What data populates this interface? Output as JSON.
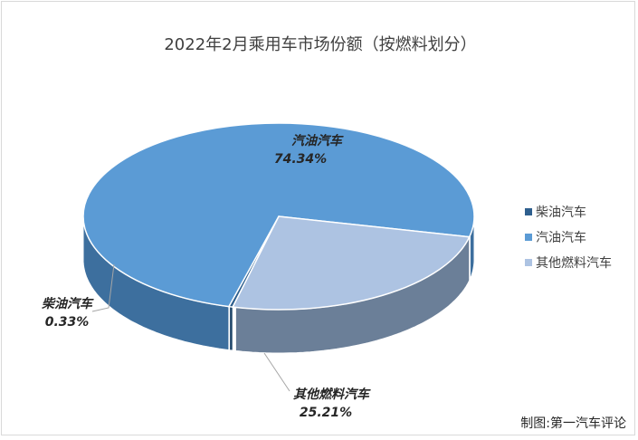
{
  "chart_data": {
    "type": "pie",
    "title": "2022年2月乘用车市场份额（按燃料划分）",
    "categories": [
      "柴油汽车",
      "汽油汽车",
      "其他燃料汽车"
    ],
    "values": [
      0.33,
      74.34,
      25.21
    ],
    "value_labels": [
      "0.33%",
      "74.34%",
      "25.21%"
    ],
    "colors": [
      "#2e5f8e",
      "#5b9bd5",
      "#adc3e2"
    ],
    "legend": {
      "position": "right"
    },
    "three_d": true
  },
  "credit": "制图:第一汽车评论"
}
